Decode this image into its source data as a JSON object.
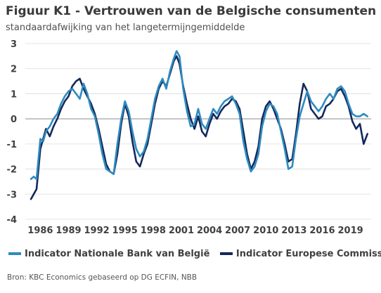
{
  "chart_data": {
    "type": "line",
    "title": "Figuur K1 - Vertrouwen van de Belgische consumenten",
    "subtitle": "standaardafwijking van het langetermijngemiddelde",
    "ylim": [
      -4,
      3
    ],
    "yticks": [
      "3",
      "2",
      "1",
      "0",
      "-1",
      "-2",
      "-3",
      "-4"
    ],
    "xlim": [
      1984.4,
      2021.2
    ],
    "xticks": [
      "1986",
      "1989",
      "1992",
      "1995",
      "1998",
      "2001",
      "2004",
      "2007",
      "2010",
      "2013",
      "2016",
      "2019"
    ],
    "legend_position": "bottom",
    "source": "Bron: KBC Economics gebaseerd op DG ECFIN, NBB",
    "series": [
      {
        "name": "Indicator Nationale Bank van België",
        "color": "#2e8bbf",
        "x": [
          1985.0,
          1985.3,
          1985.6,
          1986.0,
          1986.3,
          1986.6,
          1987.0,
          1987.4,
          1987.8,
          1988.2,
          1988.6,
          1989.0,
          1989.4,
          1989.8,
          1990.2,
          1990.6,
          1991.0,
          1991.4,
          1991.8,
          1992.2,
          1992.6,
          1993.0,
          1993.4,
          1993.8,
          1994.2,
          1994.6,
          1995.0,
          1995.4,
          1995.8,
          1996.2,
          1996.6,
          1997.0,
          1997.4,
          1997.8,
          1998.2,
          1998.6,
          1999.0,
          1999.4,
          1999.8,
          2000.2,
          2000.5,
          2000.8,
          2001.2,
          2001.6,
          2002.0,
          2002.4,
          2002.8,
          2003.2,
          2003.6,
          2004.0,
          2004.4,
          2004.8,
          2005.2,
          2005.6,
          2006.0,
          2006.4,
          2006.8,
          2007.2,
          2007.6,
          2008.0,
          2008.4,
          2008.8,
          2009.2,
          2009.6,
          2010.0,
          2010.4,
          2010.8,
          2011.2,
          2011.6,
          2012.0,
          2012.4,
          2012.8,
          2013.2,
          2013.6,
          2014.0,
          2014.4,
          2014.8,
          2015.2,
          2015.6,
          2016.0,
          2016.4,
          2016.8,
          2017.2,
          2017.6,
          2018.0,
          2018.4,
          2018.8,
          2019.2,
          2019.6,
          2020.0,
          2020.4,
          2020.8
        ],
        "values": [
          -2.4,
          -2.3,
          -2.4,
          -0.8,
          -0.9,
          -0.5,
          -0.3,
          0.0,
          0.2,
          0.6,
          0.9,
          1.1,
          1.2,
          1.0,
          0.8,
          1.4,
          1.0,
          0.4,
          0.1,
          -0.6,
          -1.4,
          -2.0,
          -2.1,
          -2.2,
          -1.0,
          0.0,
          0.7,
          0.3,
          -0.5,
          -1.2,
          -1.5,
          -1.3,
          -0.8,
          0.0,
          0.8,
          1.3,
          1.6,
          1.2,
          1.9,
          2.4,
          2.7,
          2.5,
          1.2,
          0.3,
          -0.3,
          -0.2,
          0.4,
          -0.2,
          -0.4,
          0.0,
          0.4,
          0.2,
          0.5,
          0.7,
          0.8,
          0.9,
          0.6,
          0.2,
          -0.9,
          -1.6,
          -2.1,
          -1.9,
          -1.4,
          -0.3,
          0.3,
          0.6,
          0.5,
          0.2,
          -0.5,
          -1.2,
          -2.0,
          -1.9,
          -0.8,
          0.1,
          0.6,
          1.1,
          0.7,
          0.5,
          0.3,
          0.5,
          0.8,
          1.0,
          0.8,
          1.2,
          1.3,
          1.1,
          0.6,
          0.2,
          0.1,
          0.1,
          0.2,
          0.1
        ]
      },
      {
        "name": "Indicator Europese Commissie",
        "color": "#14285c",
        "x": [
          1985.0,
          1985.3,
          1985.6,
          1986.0,
          1986.3,
          1986.6,
          1987.0,
          1987.4,
          1987.8,
          1988.2,
          1988.6,
          1989.0,
          1989.4,
          1989.8,
          1990.2,
          1990.6,
          1991.0,
          1991.4,
          1991.8,
          1992.2,
          1992.6,
          1993.0,
          1993.4,
          1993.8,
          1994.2,
          1994.6,
          1995.0,
          1995.4,
          1995.8,
          1996.2,
          1996.6,
          1997.0,
          1997.4,
          1997.8,
          1998.2,
          1998.6,
          1999.0,
          1999.4,
          1999.8,
          2000.2,
          2000.5,
          2000.8,
          2001.2,
          2001.6,
          2002.0,
          2002.4,
          2002.8,
          2003.2,
          2003.6,
          2004.0,
          2004.4,
          2004.8,
          2005.2,
          2005.6,
          2006.0,
          2006.4,
          2006.8,
          2007.2,
          2007.6,
          2008.0,
          2008.4,
          2008.8,
          2009.2,
          2009.6,
          2010.0,
          2010.4,
          2010.8,
          2011.2,
          2011.6,
          2012.0,
          2012.4,
          2012.8,
          2013.2,
          2013.6,
          2014.0,
          2014.4,
          2014.8,
          2015.2,
          2015.6,
          2016.0,
          2016.4,
          2016.8,
          2017.2,
          2017.6,
          2018.0,
          2018.4,
          2018.8,
          2019.2,
          2019.6,
          2020.0,
          2020.4,
          2020.8
        ],
        "values": [
          -3.2,
          -3.0,
          -2.8,
          -1.2,
          -0.8,
          -0.4,
          -0.7,
          -0.3,
          0.0,
          0.4,
          0.7,
          0.9,
          1.3,
          1.5,
          1.6,
          1.2,
          0.9,
          0.6,
          0.2,
          -0.4,
          -1.1,
          -1.8,
          -2.1,
          -2.2,
          -1.4,
          -0.2,
          0.6,
          0.1,
          -0.9,
          -1.7,
          -1.9,
          -1.4,
          -1.0,
          -0.2,
          0.6,
          1.2,
          1.5,
          1.3,
          1.8,
          2.3,
          2.5,
          2.2,
          1.3,
          0.6,
          0.0,
          -0.4,
          0.1,
          -0.5,
          -0.7,
          -0.2,
          0.2,
          0.0,
          0.3,
          0.5,
          0.6,
          0.8,
          0.7,
          0.4,
          -0.5,
          -1.4,
          -2.0,
          -1.7,
          -1.1,
          0.0,
          0.5,
          0.7,
          0.4,
          0.0,
          -0.4,
          -1.0,
          -1.7,
          -1.6,
          -0.6,
          0.6,
          1.4,
          1.1,
          0.4,
          0.2,
          0.0,
          0.1,
          0.5,
          0.6,
          0.8,
          1.1,
          1.2,
          0.9,
          0.5,
          -0.1,
          -0.4,
          -0.2,
          -1.0,
          -0.6
        ]
      }
    ]
  }
}
